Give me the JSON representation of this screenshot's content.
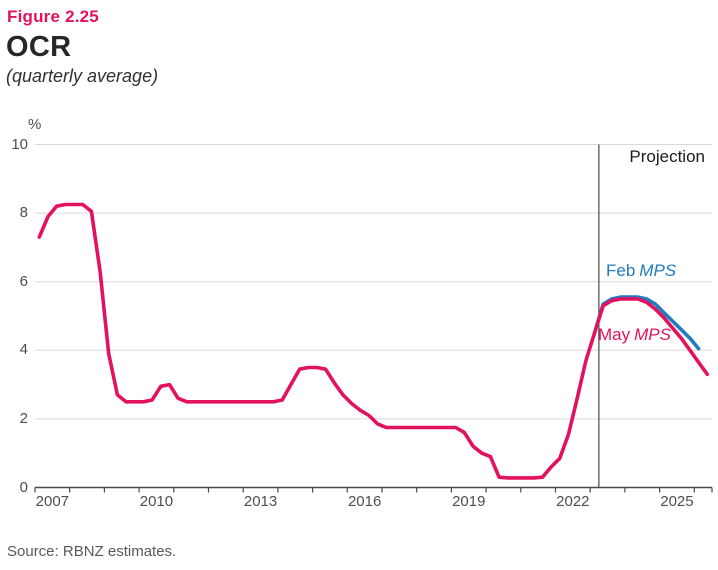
{
  "figure": {
    "label": "Figure 2.25",
    "title": "OCR",
    "subtitle": "(quarterly average)"
  },
  "axis": {
    "unit": "%"
  },
  "annotations": {
    "projection": "Projection",
    "feb_prefix": "Feb",
    "feb_italic": "MPS",
    "may_prefix": "May",
    "may_italic": "MPS"
  },
  "source": "Source: RBNZ estimates.",
  "colors": {
    "figure_accent": "#e3125e",
    "may_pink": "#e3125e",
    "feb_blue": "#1e7cc0",
    "gridline": "#d9d9d9",
    "axis": "#48494b",
    "text_dark": "#26272b",
    "text_gray": "#4d4e50"
  },
  "chart_data": {
    "type": "line",
    "title": "OCR (quarterly average)",
    "xlabel": "",
    "ylabel": "%",
    "ylim": [
      0,
      10
    ],
    "yticks": [
      0,
      2,
      4,
      6,
      8,
      10
    ],
    "xticks_years": [
      2007,
      2010,
      2013,
      2016,
      2019,
      2022,
      2025
    ],
    "x_domain": [
      2007,
      2026
    ],
    "grid": "horizontal",
    "legend_position": "inline-annotations",
    "projection_start": 2023.25,
    "frequency": "quarterly",
    "series": [
      {
        "name": "Feb MPS",
        "data_name": "feb-mps-line",
        "color": "#1e7cc0",
        "start": "2023Q1",
        "values": [
          4.5,
          5.35,
          5.5,
          5.55,
          5.55,
          5.55,
          5.5,
          5.35,
          5.1,
          4.85,
          4.6,
          4.35,
          4.05
        ]
      },
      {
        "name": "May MPS",
        "data_name": "may-mps-line",
        "color": "#e3125e",
        "start": "2007Q1",
        "values": [
          7.3,
          7.9,
          8.2,
          8.25,
          8.25,
          8.25,
          8.05,
          6.3,
          3.9,
          2.7,
          2.5,
          2.5,
          2.5,
          2.55,
          2.95,
          3.0,
          2.6,
          2.5,
          2.5,
          2.5,
          2.5,
          2.5,
          2.5,
          2.5,
          2.5,
          2.5,
          2.5,
          2.5,
          2.55,
          3.0,
          3.45,
          3.5,
          3.5,
          3.45,
          3.05,
          2.7,
          2.45,
          2.25,
          2.1,
          1.85,
          1.75,
          1.75,
          1.75,
          1.75,
          1.75,
          1.75,
          1.75,
          1.75,
          1.75,
          1.6,
          1.2,
          1.0,
          0.9,
          0.3,
          0.28,
          0.28,
          0.28,
          0.28,
          0.3,
          0.6,
          0.85,
          1.55,
          2.6,
          3.7,
          4.5,
          5.3,
          5.45,
          5.5,
          5.5,
          5.5,
          5.4,
          5.2,
          4.95,
          4.65,
          4.35,
          4.0,
          3.65,
          3.3
        ]
      }
    ]
  }
}
